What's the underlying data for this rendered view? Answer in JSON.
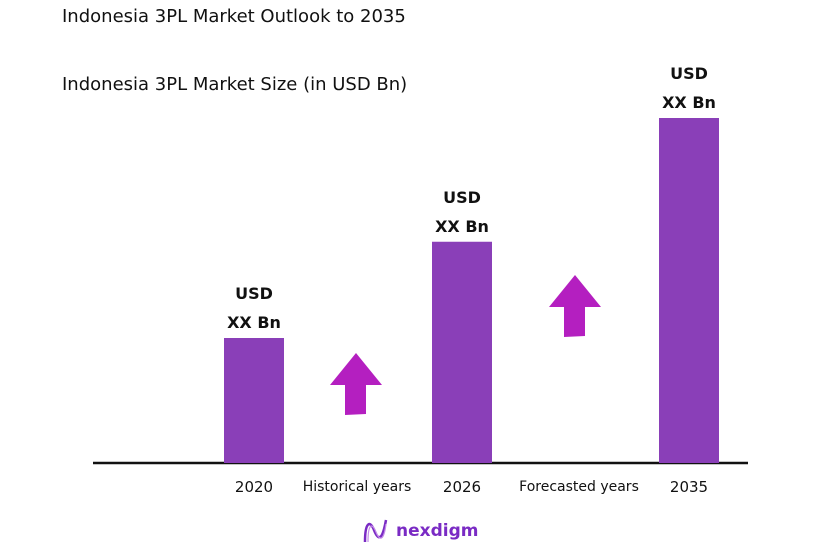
{
  "chart_data": {
    "type": "bar",
    "title": "Indonesia 3PL Market Outlook to 2035",
    "subtitle": "Indonesia 3PL Market Size (in USD Bn)",
    "categories": [
      "2020",
      "2026",
      "2035"
    ],
    "values_relative": [
      1.0,
      1.77,
      2.76
    ],
    "data_labels": [
      [
        "USD",
        "XX Bn"
      ],
      [
        "USD",
        "XX Bn"
      ],
      [
        "USD",
        "XX Bn"
      ]
    ],
    "period_labels": [
      "Historical years",
      "Forecasted years"
    ],
    "bar_color": "#8a3fb8",
    "arrow_color": "#b41fc0",
    "grid": false,
    "legend": "none"
  },
  "logo": {
    "text": "nexdigm",
    "color": "#7a2bc4"
  }
}
